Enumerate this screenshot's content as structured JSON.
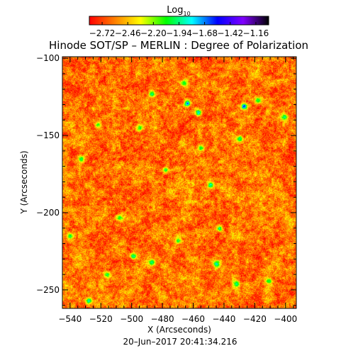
{
  "chart_data": {
    "type": "heatmap",
    "title": "Hinode SOT/SP – MERLIN : Degree of Polarization",
    "xlabel": "X (Arcseconds)",
    "ylabel": "Y (Arcseconds)",
    "xlim": [
      -545,
      -393
    ],
    "ylim": [
      -262,
      -99
    ],
    "x_ticks": [
      -540,
      -520,
      -500,
      -480,
      -460,
      -440,
      -420,
      -400
    ],
    "x_tick_labels": [
      "−540",
      "−520",
      "−500",
      "−480",
      "−460",
      "−440",
      "−420",
      "−400"
    ],
    "y_ticks": [
      -100,
      -150,
      -200,
      -250
    ],
    "y_tick_labels": [
      "−100",
      "−150",
      "−200",
      "−250"
    ],
    "colorbar": {
      "title_main": "Log",
      "title_sub": "10",
      "range": [
        -2.85,
        -1.03
      ],
      "ticks": [
        -2.72,
        -2.46,
        -2.2,
        -1.94,
        -1.68,
        -1.42,
        -1.16
      ],
      "tick_labels": [
        "−2.72",
        "−2.46",
        "−2.20",
        "−1.94",
        "−1.68",
        "−1.42",
        "−1.16"
      ],
      "colors": [
        "#ff0000",
        "#ff8000",
        "#ffff00",
        "#00ff00",
        "#00ffff",
        "#0000ff",
        "#8000ff",
        "#000000"
      ]
    },
    "grid": false,
    "hotspots": [
      {
        "x": -464,
        "y": -129,
        "v": -1.5
      },
      {
        "x": -427,
        "y": -131,
        "v": -1.3
      },
      {
        "x": -457,
        "y": -135,
        "v": -1.6
      },
      {
        "x": -487,
        "y": -123,
        "v": -1.8
      },
      {
        "x": -455,
        "y": -158,
        "v": -1.9
      },
      {
        "x": -449,
        "y": -182,
        "v": -1.7
      },
      {
        "x": -430,
        "y": -152,
        "v": -1.8
      },
      {
        "x": -418,
        "y": -127,
        "v": -1.9
      },
      {
        "x": -443,
        "y": -210,
        "v": -1.8
      },
      {
        "x": -470,
        "y": -218,
        "v": -1.9
      },
      {
        "x": -487,
        "y": -232,
        "v": -1.8
      },
      {
        "x": -499,
        "y": -228,
        "v": -1.7
      },
      {
        "x": -508,
        "y": -203,
        "v": -1.9
      },
      {
        "x": -533,
        "y": -165,
        "v": -1.9
      },
      {
        "x": -522,
        "y": -143,
        "v": -2.0
      },
      {
        "x": -445,
        "y": -233,
        "v": -1.7
      },
      {
        "x": -432,
        "y": -246,
        "v": -1.8
      },
      {
        "x": -516,
        "y": -240,
        "v": -1.9
      },
      {
        "x": -401,
        "y": -138,
        "v": -1.8
      },
      {
        "x": -466,
        "y": -116,
        "v": -1.9
      },
      {
        "x": -528,
        "y": -257,
        "v": -1.7
      },
      {
        "x": -478,
        "y": -172,
        "v": -1.9
      },
      {
        "x": -411,
        "y": -244,
        "v": -1.9
      },
      {
        "x": -495,
        "y": -145,
        "v": -1.9
      },
      {
        "x": -540,
        "y": -215,
        "v": -1.9
      }
    ]
  },
  "footer": {
    "timestamp": "20–Jun–2017 20:41:34.216"
  }
}
